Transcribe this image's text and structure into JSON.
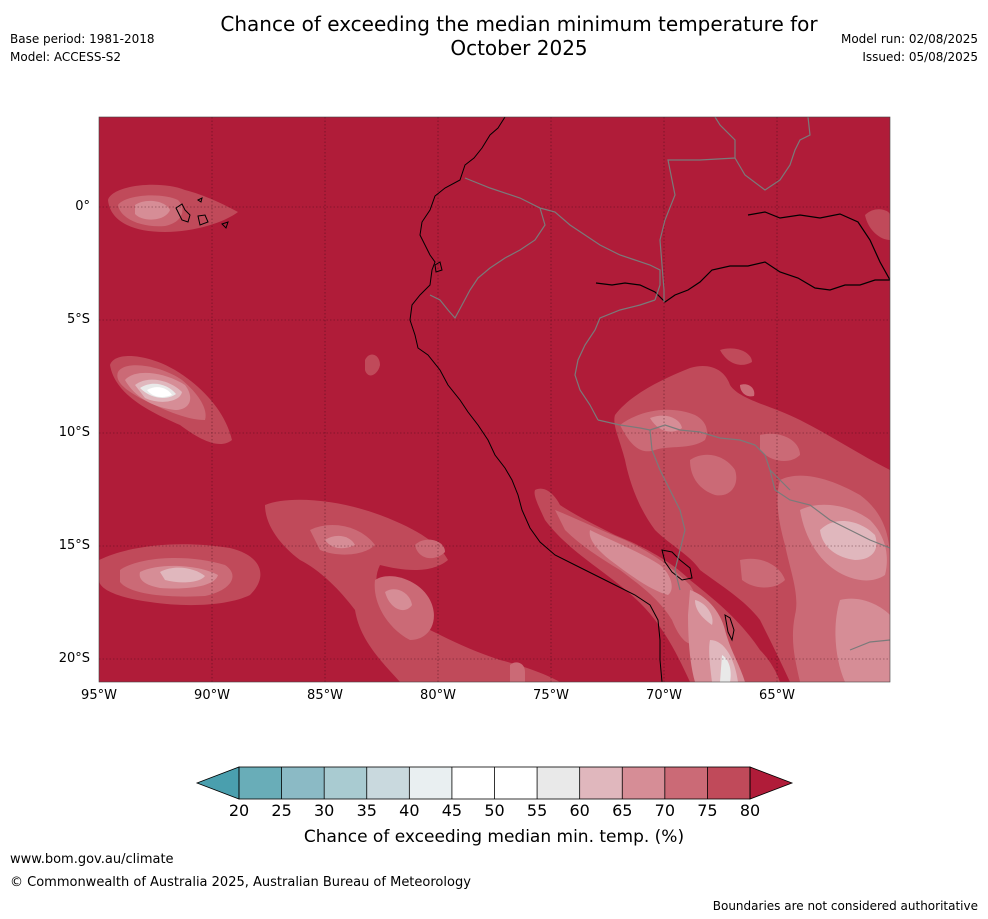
{
  "header": {
    "base_period": "Base period: 1981-2018",
    "model": "Model: ACCESS-S2",
    "title_line1": "Chance of exceeding the median minimum temperature for",
    "title_line2": "October 2025",
    "model_run": "Model run: 02/08/2025",
    "issued": "Issued: 05/08/2025"
  },
  "map": {
    "lat_labels": [
      "0°",
      "5°S",
      "10°S",
      "15°S",
      "20°S"
    ],
    "lon_labels": [
      "95°W",
      "90°W",
      "85°W",
      "80°W",
      "75°W",
      "70°W",
      "65°W"
    ],
    "background_category": "75-80",
    "colors": {
      "ge80": "#b01c39",
      "c75": "#c04a5a",
      "c70": "#cb6a76",
      "c65": "#d68d96",
      "c60": "#e0b7bd",
      "c55": "#e9e9e9",
      "c50": "#ffffff"
    }
  },
  "colorbar": {
    "label": "Chance of exceeding median min. temp. (%)",
    "ticks": [
      "20",
      "25",
      "30",
      "35",
      "40",
      "45",
      "50",
      "55",
      "60",
      "65",
      "70",
      "75",
      "80"
    ],
    "colors": [
      "#69adb8",
      "#8bbac5",
      "#a9cbd1",
      "#c9d9de",
      "#e9eff1",
      "#ffffff",
      "#ffffff",
      "#e9e9e9",
      "#e0b7bd",
      "#d68d96",
      "#cb6a76",
      "#c04a5a"
    ],
    "under_color": "#4a9fae",
    "over_color": "#b01c39"
  },
  "footer": {
    "url": "www.bom.gov.au/climate",
    "copyright": "© Commonwealth of Australia 2025, Australian Bureau of Meteorology",
    "disclaimer": "Boundaries are not considered authoritative"
  }
}
